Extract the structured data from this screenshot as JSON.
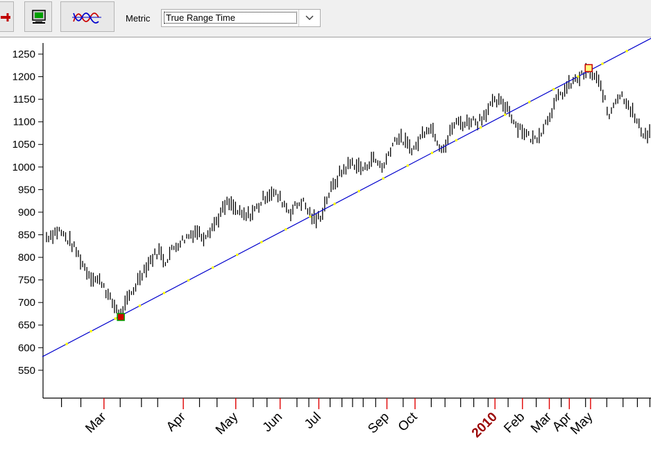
{
  "toolbar": {
    "buttons": [
      {
        "icon": "arrow-icon",
        "color": "#c00000"
      },
      {
        "icon": "monitor-icon",
        "color": "#00a000"
      },
      {
        "icon": "sine-waves-icon",
        "colors": [
          "#cc0000",
          "#0000cc"
        ]
      }
    ],
    "metric_label": "Metric",
    "metric_value": "True Range Time"
  },
  "chart_data": {
    "type": "bar",
    "subtype": "ohlc-range",
    "ylim": [
      495,
      1290
    ],
    "yticks": [
      550,
      600,
      650,
      700,
      750,
      800,
      850,
      900,
      950,
      1000,
      1050,
      1100,
      1150,
      1200,
      1250
    ],
    "colors": {
      "bars": "#000000",
      "trendline": "#0000cc",
      "trend_dots": "#ffff00",
      "major_tick": "#e00000",
      "year_label": "#9a0000"
    },
    "x_labels": [
      {
        "label": "Mar",
        "i": 9.2
      },
      {
        "label": "Apr",
        "i": 21.9
      },
      {
        "label": "May",
        "i": 30.3
      },
      {
        "label": "Jun",
        "i": 37.4
      },
      {
        "label": "Jul",
        "i": 43.6
      },
      {
        "label": "Sep",
        "i": 54.5
      },
      {
        "label": "Oct",
        "i": 59.0
      },
      {
        "label": "2010",
        "i": 71.8,
        "year": true
      },
      {
        "label": "Feb",
        "i": 76.2
      },
      {
        "label": "Mar",
        "i": 80.5
      },
      {
        "label": "Apr",
        "i": 83.7
      },
      {
        "label": "May",
        "i": 87.1
      }
    ],
    "minor_ticks": [
      2.4,
      5.5,
      11.8,
      15.2,
      17.8,
      24.5,
      27.3,
      33.1,
      35.3,
      40.1,
      42.0,
      45.4,
      47.3,
      49.0,
      50.7,
      52.7,
      57.1,
      61.6,
      63.8,
      66.3,
      68.4,
      70.7,
      73.9,
      78.4,
      82.4,
      86.3,
      89.7,
      92.3,
      94.6,
      96.6
    ],
    "trendline": {
      "start": {
        "i": 0,
        "y": 580
      },
      "end": {
        "i": 96.8,
        "y": 1285
      }
    },
    "markers": [
      {
        "i": 11.9,
        "y": 668,
        "kind": "low",
        "fill": "#d00000",
        "stroke": "#00a000"
      },
      {
        "i": 86.8,
        "y": 1219,
        "kind": "high",
        "fill": "#ffff80",
        "stroke": "#cc0000"
      }
    ],
    "anchors": [
      {
        "i": 0,
        "y": 845
      },
      {
        "i": 2,
        "y": 860
      },
      {
        "i": 4,
        "y": 830
      },
      {
        "i": 5,
        "y": 808
      },
      {
        "i": 6,
        "y": 780
      },
      {
        "i": 7,
        "y": 760
      },
      {
        "i": 8,
        "y": 750
      },
      {
        "i": 9,
        "y": 745
      },
      {
        "i": 10,
        "y": 710
      },
      {
        "i": 11,
        "y": 690
      },
      {
        "i": 12,
        "y": 675
      },
      {
        "i": 13,
        "y": 705
      },
      {
        "i": 14,
        "y": 730
      },
      {
        "i": 15,
        "y": 760
      },
      {
        "i": 16,
        "y": 780
      },
      {
        "i": 17,
        "y": 800
      },
      {
        "i": 18,
        "y": 815
      },
      {
        "i": 19,
        "y": 790
      },
      {
        "i": 20,
        "y": 815
      },
      {
        "i": 21,
        "y": 830
      },
      {
        "i": 22,
        "y": 840
      },
      {
        "i": 23,
        "y": 850
      },
      {
        "i": 24,
        "y": 860
      },
      {
        "i": 25,
        "y": 845
      },
      {
        "i": 26,
        "y": 860
      },
      {
        "i": 27,
        "y": 875
      },
      {
        "i": 28,
        "y": 900
      },
      {
        "i": 29,
        "y": 920
      },
      {
        "i": 30,
        "y": 910
      },
      {
        "i": 31,
        "y": 895
      },
      {
        "i": 32,
        "y": 890
      },
      {
        "i": 33,
        "y": 900
      },
      {
        "i": 34,
        "y": 915
      },
      {
        "i": 35,
        "y": 935
      },
      {
        "i": 36,
        "y": 945
      },
      {
        "i": 37,
        "y": 935
      },
      {
        "i": 38,
        "y": 920
      },
      {
        "i": 39,
        "y": 900
      },
      {
        "i": 40,
        "y": 915
      },
      {
        "i": 41,
        "y": 925
      },
      {
        "i": 42,
        "y": 900
      },
      {
        "i": 43,
        "y": 880
      },
      {
        "i": 44,
        "y": 895
      },
      {
        "i": 45,
        "y": 935
      },
      {
        "i": 46,
        "y": 960
      },
      {
        "i": 47,
        "y": 985
      },
      {
        "i": 48,
        "y": 1000
      },
      {
        "i": 49,
        "y": 1010
      },
      {
        "i": 50,
        "y": 1000
      },
      {
        "i": 51,
        "y": 995
      },
      {
        "i": 52,
        "y": 1020
      },
      {
        "i": 53,
        "y": 1010
      },
      {
        "i": 54,
        "y": 1000
      },
      {
        "i": 55,
        "y": 1040
      },
      {
        "i": 56,
        "y": 1065
      },
      {
        "i": 57,
        "y": 1060
      },
      {
        "i": 58,
        "y": 1045
      },
      {
        "i": 59,
        "y": 1040
      },
      {
        "i": 60,
        "y": 1070
      },
      {
        "i": 61,
        "y": 1090
      },
      {
        "i": 62,
        "y": 1080
      },
      {
        "i": 63,
        "y": 1045
      },
      {
        "i": 64,
        "y": 1050
      },
      {
        "i": 65,
        "y": 1090
      },
      {
        "i": 66,
        "y": 1100
      },
      {
        "i": 67,
        "y": 1095
      },
      {
        "i": 68,
        "y": 1105
      },
      {
        "i": 69,
        "y": 1100
      },
      {
        "i": 70,
        "y": 1115
      },
      {
        "i": 71,
        "y": 1135
      },
      {
        "i": 72,
        "y": 1145
      },
      {
        "i": 73,
        "y": 1140
      },
      {
        "i": 74,
        "y": 1130
      },
      {
        "i": 75,
        "y": 1095
      },
      {
        "i": 76,
        "y": 1085
      },
      {
        "i": 77,
        "y": 1070
      },
      {
        "i": 78,
        "y": 1060
      },
      {
        "i": 79,
        "y": 1075
      },
      {
        "i": 80,
        "y": 1100
      },
      {
        "i": 81,
        "y": 1130
      },
      {
        "i": 82,
        "y": 1155
      },
      {
        "i": 83,
        "y": 1170
      },
      {
        "i": 84,
        "y": 1185
      },
      {
        "i": 85,
        "y": 1195
      },
      {
        "i": 86,
        "y": 1205
      },
      {
        "i": 87,
        "y": 1212
      },
      {
        "i": 88,
        "y": 1195
      },
      {
        "i": 89,
        "y": 1170
      },
      {
        "i": 90,
        "y": 1110
      },
      {
        "i": 91,
        "y": 1150
      },
      {
        "i": 92,
        "y": 1160
      },
      {
        "i": 93,
        "y": 1145
      },
      {
        "i": 94,
        "y": 1115
      },
      {
        "i": 95,
        "y": 1085
      },
      {
        "i": 96,
        "y": 1070
      },
      {
        "i": 97,
        "y": 1080
      }
    ]
  }
}
